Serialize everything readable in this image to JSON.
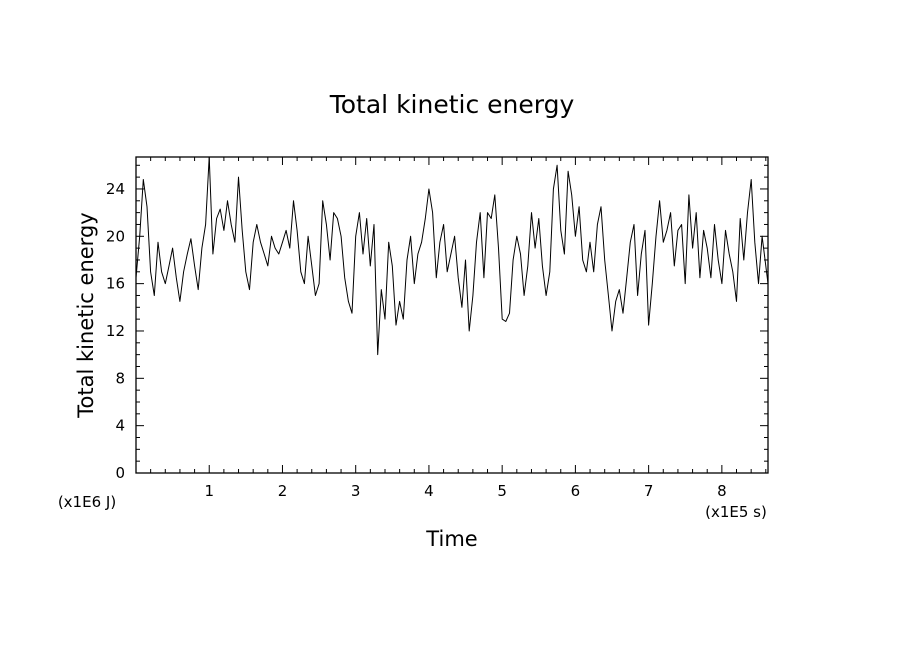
{
  "chart_data": {
    "type": "line",
    "title": "Total kinetic energy",
    "xlabel": "Time",
    "ylabel": "Total kinetic energy",
    "x_unit": "(x1E5 s)",
    "y_unit": "(x1E6 J)",
    "xlim": [
      0,
      8.63
    ],
    "ylim": [
      0,
      26.7
    ],
    "x_ticks": [
      1,
      2,
      3,
      4,
      5,
      6,
      7,
      8
    ],
    "x_tick_labels": [
      "1",
      "2",
      "3",
      "4",
      "5",
      "6",
      "7",
      "8"
    ],
    "y_ticks": [
      0,
      4,
      8,
      12,
      16,
      20,
      24
    ],
    "y_tick_labels": [
      "0",
      "4",
      "8",
      "12",
      "16",
      "20",
      "24"
    ],
    "grid": false,
    "series": [
      {
        "color": "#000000",
        "x": [
          0.0,
          0.05,
          0.1,
          0.15,
          0.2,
          0.25,
          0.3,
          0.35,
          0.4,
          0.45,
          0.5,
          0.55,
          0.6,
          0.65,
          0.7,
          0.75,
          0.8,
          0.85,
          0.9,
          0.95,
          1.0,
          1.05,
          1.1,
          1.15,
          1.2,
          1.25,
          1.3,
          1.35,
          1.4,
          1.45,
          1.5,
          1.55,
          1.6,
          1.65,
          1.7,
          1.75,
          1.8,
          1.85,
          1.9,
          1.95,
          2.0,
          2.05,
          2.1,
          2.15,
          2.2,
          2.25,
          2.3,
          2.35,
          2.4,
          2.45,
          2.5,
          2.55,
          2.6,
          2.65,
          2.7,
          2.75,
          2.8,
          2.85,
          2.9,
          2.95,
          3.0,
          3.05,
          3.1,
          3.15,
          3.2,
          3.25,
          3.3,
          3.35,
          3.4,
          3.45,
          3.5,
          3.55,
          3.6,
          3.65,
          3.7,
          3.75,
          3.8,
          3.85,
          3.9,
          3.95,
          4.0,
          4.05,
          4.1,
          4.15,
          4.2,
          4.25,
          4.3,
          4.35,
          4.4,
          4.45,
          4.5,
          4.55,
          4.6,
          4.65,
          4.7,
          4.75,
          4.8,
          4.85,
          4.9,
          4.95,
          5.0,
          5.05,
          5.1,
          5.15,
          5.2,
          5.25,
          5.3,
          5.35,
          5.4,
          5.45,
          5.5,
          5.55,
          5.6,
          5.65,
          5.7,
          5.75,
          5.8,
          5.85,
          5.9,
          5.95,
          6.0,
          6.05,
          6.1,
          6.15,
          6.2,
          6.25,
          6.3,
          6.35,
          6.4,
          6.45,
          6.5,
          6.55,
          6.6,
          6.65,
          6.7,
          6.75,
          6.8,
          6.85,
          6.9,
          6.95,
          7.0,
          7.05,
          7.1,
          7.15,
          7.2,
          7.25,
          7.3,
          7.35,
          7.4,
          7.45,
          7.5,
          7.55,
          7.6,
          7.65,
          7.7,
          7.75,
          7.8,
          7.85,
          7.9,
          7.95,
          8.0,
          8.05,
          8.1,
          8.15,
          8.2,
          8.25,
          8.3,
          8.35,
          8.4,
          8.45,
          8.5,
          8.55,
          8.6,
          8.63
        ],
        "y": [
          16.5,
          20.0,
          24.8,
          22.5,
          17.0,
          15.0,
          19.5,
          17.0,
          16.0,
          17.5,
          19.0,
          16.5,
          14.5,
          17.0,
          18.5,
          19.8,
          17.5,
          15.5,
          19.0,
          21.0,
          26.7,
          18.5,
          21.5,
          22.3,
          20.5,
          23.0,
          21.0,
          19.5,
          25.0,
          20.5,
          17.0,
          15.5,
          19.5,
          21.0,
          19.5,
          18.5,
          17.5,
          20.0,
          19.0,
          18.5,
          19.5,
          20.5,
          19.0,
          23.0,
          20.5,
          17.0,
          16.0,
          20.0,
          17.5,
          15.0,
          16.0,
          23.0,
          21.0,
          18.0,
          22.0,
          21.5,
          20.0,
          16.5,
          14.5,
          13.5,
          20.0,
          22.0,
          18.5,
          21.5,
          17.5,
          21.0,
          10.0,
          15.5,
          13.0,
          19.5,
          17.5,
          12.5,
          14.5,
          13.0,
          18.0,
          20.0,
          16.0,
          18.5,
          19.5,
          21.5,
          24.0,
          22.0,
          16.5,
          19.5,
          21.0,
          17.0,
          18.5,
          20.0,
          16.5,
          14.0,
          18.0,
          12.0,
          15.0,
          19.5,
          22.0,
          16.5,
          22.0,
          21.5,
          23.5,
          19.0,
          13.0,
          12.8,
          13.5,
          18.0,
          20.0,
          18.5,
          15.0,
          17.5,
          22.0,
          19.0,
          21.5,
          17.5,
          15.0,
          17.0,
          24.0,
          26.0,
          20.5,
          18.5,
          25.5,
          23.5,
          20.0,
          22.5,
          18.0,
          17.0,
          19.5,
          17.0,
          21.0,
          22.5,
          18.0,
          15.0,
          12.0,
          14.5,
          15.5,
          13.5,
          16.5,
          19.5,
          21.0,
          15.0,
          18.5,
          20.5,
          12.5,
          16.0,
          20.0,
          23.0,
          19.5,
          20.5,
          22.0,
          17.5,
          20.5,
          21.0,
          16.0,
          23.5,
          19.0,
          22.0,
          16.5,
          20.5,
          19.0,
          16.5,
          21.0,
          18.0,
          16.0,
          20.5,
          18.5,
          17.0,
          14.5,
          21.5,
          18.0,
          22.0,
          24.8,
          19.5,
          16.0,
          20.0,
          17.5,
          16.0
        ]
      }
    ]
  }
}
